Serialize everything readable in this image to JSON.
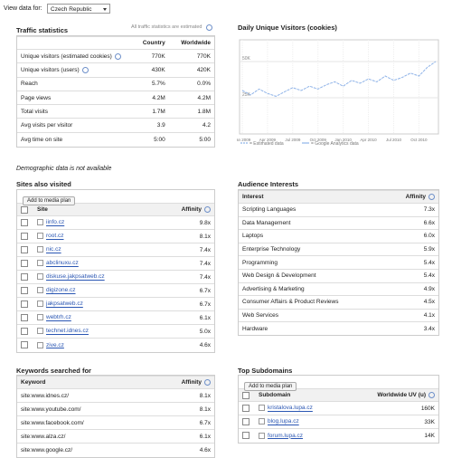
{
  "header": {
    "label": "View data for:",
    "selected": "Czech Republic"
  },
  "traffic": {
    "title": "Traffic statistics",
    "note": "All traffic statistics are estimated",
    "columns": [
      "",
      "Country",
      "Worldwide"
    ],
    "rows": [
      [
        "Unique visitors (estimated cookies)",
        "770K",
        "770K"
      ],
      [
        "Unique visitors (users)",
        "430K",
        "420K"
      ],
      [
        "Reach",
        "5.7%",
        "0.0%"
      ],
      [
        "Page views",
        "4.2M",
        "4.2M"
      ],
      [
        "Total visits",
        "1.7M",
        "1.8M"
      ],
      [
        "Avg visits per visitor",
        "3.9",
        "4.2"
      ],
      [
        "Avg time on site",
        "5:00",
        "5:00"
      ]
    ]
  },
  "chart": {
    "type": "line",
    "title": "Daily Unique Visitors (cookies)",
    "color": "#8fb3e8",
    "x_labels": [
      "Jan 2009",
      "Apr 2009",
      "Jul 2009",
      "Oct 2009",
      "Jan 2010",
      "Apr 2010",
      "Jul 2010",
      "Oct 2010"
    ],
    "values": [
      30000,
      27000,
      31000,
      28000,
      26000,
      29000,
      32000,
      30000,
      33000,
      31000,
      34000,
      36000,
      33000,
      37000,
      35000,
      38000,
      36000,
      40000,
      37000,
      39000,
      42000,
      40000,
      46000,
      50000
    ],
    "ylim": [
      0,
      65000
    ],
    "yticks": [
      {
        "value": 25000,
        "label": "25K"
      },
      {
        "value": 50000,
        "label": "50K"
      }
    ],
    "legend": [
      "= Estimated data",
      "= Google Analytics data"
    ]
  },
  "demographic": "Demographic data is not available",
  "sites": {
    "title": "Sites also visited",
    "button": "Add to media plan",
    "columns": [
      "Site",
      "Affinity"
    ],
    "rows": [
      [
        "iinfo.cz",
        "9.8x"
      ],
      [
        "root.cz",
        "8.1x"
      ],
      [
        "nic.cz",
        "7.4x"
      ],
      [
        "abclinuxu.cz",
        "7.4x"
      ],
      [
        "diskuse.jakpsatweb.cz",
        "7.4x"
      ],
      [
        "digizone.cz",
        "6.7x"
      ],
      [
        "jakpsatweb.cz",
        "6.7x"
      ],
      [
        "webtrh.cz",
        "6.1x"
      ],
      [
        "technet.idnes.cz",
        "5.0x"
      ],
      [
        "zive.cz",
        "4.6x"
      ]
    ]
  },
  "interests": {
    "title": "Audience Interests",
    "columns": [
      "Interest",
      "Affinity"
    ],
    "rows": [
      [
        "Scripting Languages",
        "7.3x"
      ],
      [
        "Data Management",
        "6.6x"
      ],
      [
        "Laptops",
        "6.0x"
      ],
      [
        "Enterprise Technology",
        "5.9x"
      ],
      [
        "Programming",
        "5.4x"
      ],
      [
        "Web Design & Development",
        "5.4x"
      ],
      [
        "Advertising & Marketing",
        "4.9x"
      ],
      [
        "Consumer Affairs & Product Reviews",
        "4.5x"
      ],
      [
        "Web Services",
        "4.1x"
      ],
      [
        "Hardware",
        "3.4x"
      ]
    ]
  },
  "keywords": {
    "title": "Keywords searched for",
    "columns": [
      "Keyword",
      "Affinity"
    ],
    "rows": [
      [
        "site:www.idnes.cz/",
        "8.1x"
      ],
      [
        "site:www.youtube.com/",
        "8.1x"
      ],
      [
        "site:www.facebook.com/",
        "6.7x"
      ],
      [
        "site:www.alza.cz/",
        "6.1x"
      ],
      [
        "site:www.google.cz/",
        "4.6x"
      ]
    ]
  },
  "subdomains": {
    "title": "Top Subdomains",
    "button": "Add to media plan",
    "columns": [
      "Subdomain",
      "Worldwide UV (u)"
    ],
    "rows": [
      [
        "kristalova.lupa.cz",
        "160K"
      ],
      [
        "blog.lupa.cz",
        "33K"
      ],
      [
        "forum.lupa.cz",
        "14K"
      ]
    ]
  }
}
